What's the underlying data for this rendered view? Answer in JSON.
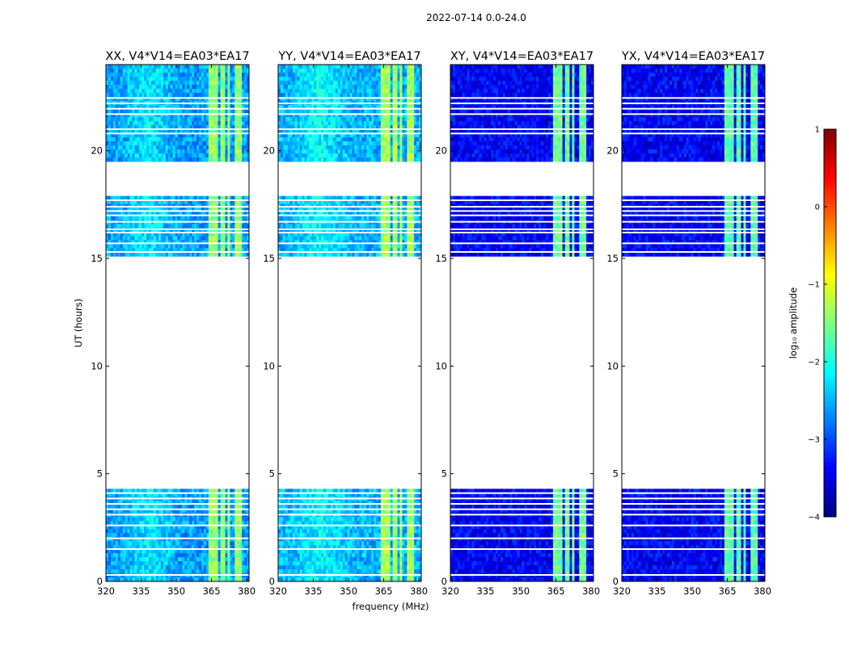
{
  "figure": {
    "suptitle": "2022-07-14 0.0-24.0",
    "xlabel": "frequency (MHz)",
    "ylabel": "UT (hours)"
  },
  "chart_data": {
    "type": "heatmap",
    "title": "2022-07-14 0.0-24.0",
    "xlabel": "frequency (MHz)",
    "ylabel": "UT (hours)",
    "xlim": [
      320,
      381
    ],
    "ylim": [
      0,
      24
    ],
    "x_ticks": [
      320,
      335,
      350,
      365,
      380
    ],
    "x_tick_labels": [
      "320",
      "335",
      "350",
      "365",
      "380"
    ],
    "y_ticks": [
      0,
      5,
      10,
      15,
      20
    ],
    "y_tick_labels": [
      "0",
      "5",
      "10",
      "15",
      "20"
    ],
    "data_blocks_hours": [
      [
        0.0,
        4.3
      ],
      [
        15.1,
        17.9
      ],
      [
        19.5,
        24.0
      ]
    ],
    "flagged_rows_hours": [
      0.3,
      1.5,
      2.0,
      2.6,
      3.1,
      3.35,
      3.6,
      3.85,
      4.1,
      15.3,
      15.7,
      16.2,
      16.35,
      16.7,
      17.0,
      17.2,
      17.4,
      17.7,
      20.8,
      21.0,
      21.7,
      21.95,
      22.2,
      22.45
    ],
    "rfi_channels_mhz": [
      [
        363.5,
        367.5
      ],
      [
        368.5,
        370.5
      ],
      [
        371.5,
        373.0
      ],
      [
        374.5,
        378.0
      ]
    ],
    "panels": [
      {
        "title": "XX, V4*V14=EA03*EA17",
        "pol": "XX",
        "base_log_amp": -2.6,
        "rfi_log_amp": -1.4
      },
      {
        "title": "YY, V4*V14=EA03*EA17",
        "pol": "YY",
        "base_log_amp": -2.5,
        "rfi_log_amp": -1.3
      },
      {
        "title": "XY, V4*V14=EA03*EA17",
        "pol": "XY",
        "base_log_amp": -3.4,
        "rfi_log_amp": -1.6
      },
      {
        "title": "YX, V4*V14=EA03*EA17",
        "pol": "YX",
        "base_log_amp": -3.4,
        "rfi_log_amp": -1.7
      }
    ],
    "colorbar": {
      "label": "log₁₀ amplitude",
      "vmin": -4,
      "vmax": 1,
      "ticks": [
        1,
        0,
        -1,
        -2,
        -3,
        -4
      ],
      "tick_labels": [
        "1",
        "0",
        "−1",
        "−2",
        "−3",
        "−4"
      ],
      "colormap": "jet"
    }
  }
}
